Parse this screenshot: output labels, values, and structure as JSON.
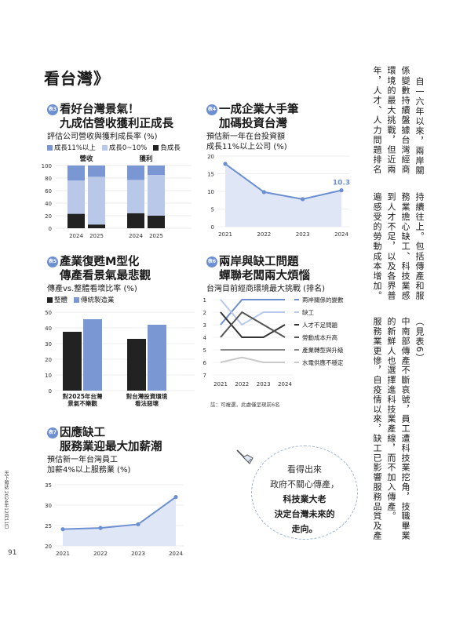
{
  "page_title": "看台灣》",
  "sections": {
    "s3": {
      "badge": "表3",
      "title1": "看好台灣景氣！",
      "title2": "九成估營收獲利正成長",
      "subtitle": "評估公司營收與獲利成長率 (%)",
      "legend": [
        "成長11%以上",
        "成長0~10%",
        "負成長"
      ],
      "colors": {
        "high": "#7a97d4",
        "mid": "#b9c8e8",
        "neg": "#222222"
      }
    },
    "s4": {
      "badge": "表4",
      "title1": "一成企業大手筆",
      "title2": "加碼投資台灣",
      "subtitle1": "預估新一年在台投資額",
      "subtitle2": "成長11%以上公司 (%)"
    },
    "s5": {
      "badge": "表5",
      "title1": "產業復甦M型化",
      "title2": "傳產看景氣最悲觀",
      "subtitle": "傳產vs.整體看壞比率 (%)",
      "legend": [
        "整體",
        "傳統製造業"
      ]
    },
    "s6": {
      "badge": "表6",
      "title1": "兩岸與缺工問題",
      "title2": "蟬聯老闆兩大煩惱",
      "subtitle": "台灣目前經商環境最大挑戰 (排名)",
      "note": "註：可複選，此處僅呈現前6名"
    },
    "s7": {
      "badge": "表7",
      "title1": "因應缺工",
      "title2": "服務業迎最大加薪潮",
      "subtitle1": "預估新一年台灣員工",
      "subtitle2": "加薪4%以上服務業 (%)"
    }
  },
  "chart_data": [
    {
      "id": "s3",
      "type": "bar",
      "stacked": true,
      "groups": [
        "營收",
        "獲利"
      ],
      "categories": [
        "2024",
        "2025",
        "2024",
        "2025"
      ],
      "series": [
        {
          "name": "負成長",
          "values": [
            23,
            6,
            24,
            20
          ]
        },
        {
          "name": "成長0~10%",
          "values": [
            53,
            76,
            53,
            65
          ]
        },
        {
          "name": "成長11%以上",
          "values": [
            24,
            18,
            23,
            15
          ]
        }
      ],
      "ylim": [
        0,
        100
      ],
      "yticks": [
        0,
        20,
        40,
        60,
        80,
        100
      ]
    },
    {
      "id": "s4",
      "type": "area",
      "x": [
        "2021",
        "2022",
        "2023",
        "2024"
      ],
      "values": [
        17.8,
        9.8,
        7.8,
        10.3
      ],
      "data_label": "10.3",
      "ylim": [
        0,
        20
      ],
      "yticks": [
        0,
        5,
        10,
        15,
        20
      ]
    },
    {
      "id": "s5",
      "type": "bar",
      "categories": [
        "對2025年台灣景氣不樂觀",
        "對台灣投資環境看法惡壞"
      ],
      "category_lines": [
        [
          "對2025年台灣",
          "景氣不樂觀"
        ],
        [
          "對台灣投資環境",
          "看法惡壞"
        ]
      ],
      "series": [
        {
          "name": "整體",
          "values": [
            37.5,
            33
          ]
        },
        {
          "name": "傳統製造業",
          "values": [
            45.5,
            42
          ]
        }
      ],
      "ylim": [
        0,
        50
      ],
      "yticks": [
        0,
        10,
        20,
        30,
        40,
        50
      ]
    },
    {
      "id": "s6",
      "type": "line",
      "x": [
        "2021",
        "2022",
        "2023",
        "2024"
      ],
      "yticks": [
        1,
        2,
        3,
        4,
        5,
        6,
        7
      ],
      "series": [
        {
          "name": "兩岸關係的變數",
          "values": [
            3,
            1,
            1,
            1
          ],
          "color": "#6c8fd1"
        },
        {
          "name": "缺工",
          "values": [
            1,
            3,
            2,
            2
          ],
          "color": "#b9c8e8"
        },
        {
          "name": "人才不足問題",
          "values": [
            2,
            4,
            4,
            3
          ],
          "color": "#333333"
        },
        {
          "name": "勞動成本升高",
          "values": [
            4,
            2,
            3,
            4
          ],
          "color": "#555555"
        },
        {
          "name": "產業轉型與升級",
          "values": [
            5,
            5,
            5,
            5
          ],
          "color": "#888888"
        },
        {
          "name": "水電供應不穩定",
          "values": [
            6,
            5.6,
            6,
            6
          ],
          "color": "#c9c9c9"
        }
      ]
    },
    {
      "id": "s7",
      "type": "area",
      "x": [
        "2021",
        "2022",
        "2023",
        "2024"
      ],
      "values": [
        24.1,
        24.4,
        25.3,
        32
      ],
      "ylim": [
        20,
        35
      ],
      "yticks": [
        20,
        25,
        30,
        35
      ]
    }
  ],
  "callout": {
    "line1": "看得出來",
    "line2": "政府不關心傳產，",
    "line3": "科技業大老",
    "line4": "決定台灣未來的",
    "line5": "走向。"
  },
  "article_columns": [
    "自一六年以來，兩岸關",
    "係變數持續盤據台灣經商",
    "環境的最大挑戰，但近兩",
    "年，人才、人力問題排名",
    "持續往上。包括傳產和服",
    "務業擔心缺工、科技業感",
    "到人才不足，以及各界普",
    "遍感受的勞動成本增加。",
    "（見表6）",
    "中南部傳產不斷哀號，員工遭科技業挖角，技職畢業",
    "的新鮮人也選擇進科技業產線，而不加入傳產。",
    "服務業更慘，自疫情以來，缺工已影響服務品質及產"
  ],
  "footer": {
    "side_text": "天下雜誌 2024年12月11日",
    "page_number": "91"
  }
}
